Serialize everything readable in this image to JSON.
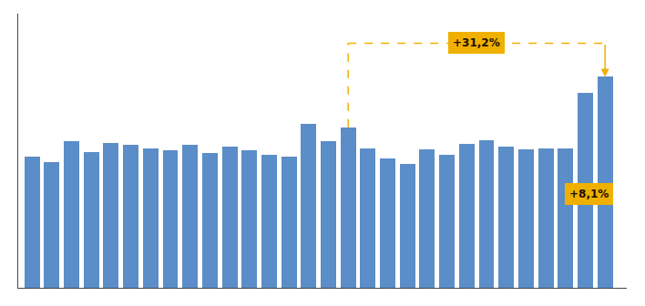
{
  "chart_data": {
    "type": "bar",
    "categories": [
      null,
      null,
      null,
      null,
      null,
      null,
      null,
      null,
      null,
      null,
      null,
      null,
      null,
      null,
      null,
      null,
      null,
      null,
      null,
      null,
      null,
      null,
      null,
      null,
      null,
      null,
      null,
      null,
      null,
      null
    ],
    "values": [
      2.55,
      2.45,
      2.85,
      2.65,
      2.82,
      2.78,
      2.72,
      2.68,
      2.78,
      2.62,
      2.75,
      2.68,
      2.6,
      2.55,
      3.2,
      2.85,
      3.13,
      2.72,
      2.52,
      2.42,
      2.7,
      2.6,
      2.8,
      2.88,
      2.75,
      2.7,
      2.72,
      2.72,
      3.8,
      4.11
    ],
    "color": "#5b8dc8",
    "ylim": [
      0,
      5.343
    ],
    "grid": false,
    "tick_labels": false,
    "annotations": [
      {
        "text": "+31,2%",
        "from": 16,
        "to": 29,
        "color": "#f0b000",
        "text_color": "#1a0f00"
      },
      {
        "text": "+8,1%",
        "from": 28,
        "to": 29,
        "color": "#f0b000",
        "text_color": "#1a0f00"
      }
    ]
  }
}
